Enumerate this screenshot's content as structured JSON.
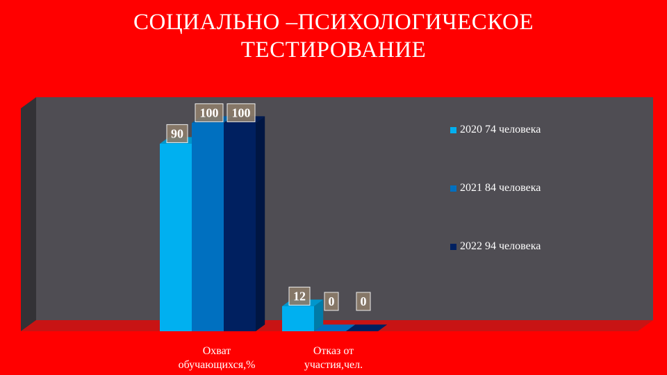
{
  "title": {
    "line1": "СОЦИАЛЬНО –ПСИХОЛОГИЧЕСКОЕ",
    "line2": "ТЕСТИРОВАНИЕ"
  },
  "colors": {
    "background": "#ff0000",
    "floor": "#c81414",
    "wall": "#4f4d53",
    "side_wall": "#333236",
    "label_box": "#8c7c6a"
  },
  "chart_data": {
    "type": "bar",
    "title": "СОЦИАЛЬНО –ПСИХОЛОГИЧЕСКОЕ ТЕСТИРОВАНИЕ",
    "categories": [
      [
        "Охват",
        "обучающихся,%"
      ],
      [
        "Отказ от",
        "участия,чел."
      ]
    ],
    "series": [
      {
        "name": "2020  74 человека",
        "values": [
          90,
          12
        ],
        "color": "#00b0f0"
      },
      {
        "name": "2021  84 человека",
        "values": [
          100,
          0
        ],
        "color": "#0070c0"
      },
      {
        "name": "2022  94 человека",
        "values": [
          100,
          0
        ],
        "color": "#002060"
      }
    ],
    "data_labels": [
      [
        "90",
        "12"
      ],
      [
        "100",
        "0"
      ],
      [
        "100",
        "0"
      ]
    ],
    "ylim": [
      0,
      100
    ],
    "grid": false,
    "legend_position": "right",
    "three_d": true
  }
}
